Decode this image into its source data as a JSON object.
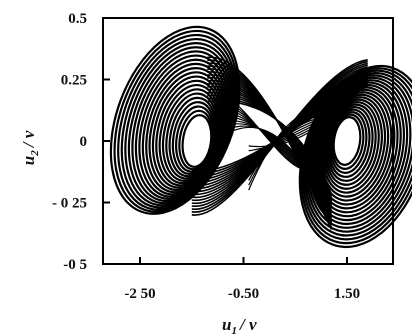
{
  "chart_data": {
    "type": "line",
    "title": "",
    "xlabel_var": "u",
    "xlabel_sub": "1",
    "xlabel_unit": "/ v",
    "ylabel_var": "u",
    "ylabel_sub": "2",
    "ylabel_unit": "/ v",
    "xlim": [
      -2.5,
      2.5
    ],
    "ylim": [
      -0.5,
      0.5
    ],
    "x_ticks": [
      -2.5,
      -0.5,
      1.5
    ],
    "x_tick_labels": [
      "-2 50",
      "-0.50",
      "1.50"
    ],
    "y_ticks": [
      0.5,
      0.25,
      0,
      -0.25,
      -0.5
    ],
    "y_tick_labels": [
      "0.5",
      "0.25",
      "0",
      "- 0 25",
      "-0 5"
    ],
    "grid": false,
    "legend": "none",
    "line_color": "#000000",
    "series": [
      {
        "description": "double-scroll chaotic attractor trajectory",
        "left_scroll_center": [
          -1.4,
          0.0
        ],
        "right_scroll_center": [
          1.5,
          0.0
        ],
        "x_range": [
          -2.2,
          2.15
        ],
        "y_range": [
          -0.39,
          0.36
        ]
      }
    ]
  }
}
